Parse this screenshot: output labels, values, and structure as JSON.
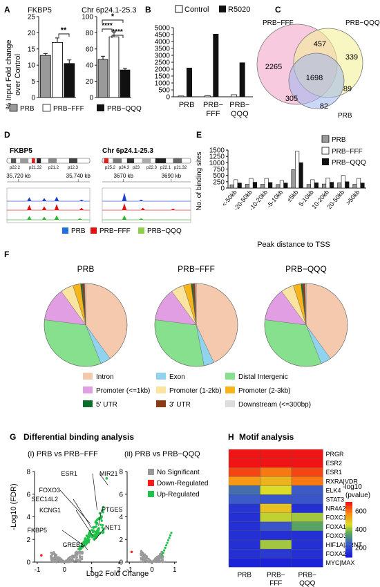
{
  "panels": {
    "A": {
      "label": "A",
      "ylabel_line1": "% Input Fold change",
      "ylabel_line2": "over Control",
      "legend": [
        "PRB",
        "PRB−FFF",
        "PRB−QQQ"
      ],
      "stars": [
        "**",
        "*",
        "****",
        "****"
      ]
    },
    "B": {
      "label": "B",
      "legend": [
        "Control",
        "R5020"
      ]
    },
    "C": {
      "label": "C"
    },
    "D": {
      "label": "D",
      "gene1": "FKBP5",
      "gene2": "Chr 6p24.1-25.3",
      "band_labels_1": [
        "p22.2",
        "p21.32",
        "p21.2",
        "p12.3"
      ],
      "band_labels_2": [
        "p25.2",
        "p24.3",
        "p23",
        "p22.3",
        "p22.1",
        "p21.32"
      ],
      "coord_labels_1": [
        "35,720 kb",
        "35,740 kb"
      ],
      "coord_labels_2": [
        "3670 kb",
        "3690 kb"
      ],
      "legend": [
        "PRB",
        "PRB−FFF",
        "PRB−QQQ"
      ]
    },
    "E": {
      "label": "E"
    },
    "F": {
      "label": "F",
      "titles": [
        "PRB",
        "PRB−FFF",
        "PRB−QQQ"
      ],
      "legend": [
        "Intron",
        "Exon",
        "Distal Intergenic",
        "Promoter (<=1kb)",
        "Promoter (1-2kb)",
        "Promoter (2-3kb)",
        "5' UTR",
        "3' UTR",
        "Downstream (<=300bp)"
      ],
      "colors": [
        "#f5c9ae",
        "#8fd3ef",
        "#86e08e",
        "#e29ee2",
        "#fbe3a0",
        "#f7b41b",
        "#0d6d2c",
        "#8b3c14",
        "#dddddd"
      ]
    },
    "G": {
      "label": "G",
      "title": "Differential binding analysis",
      "sub1": "(i) PRB vs PRB−FFF",
      "sub2": "(ii) PRB vs PRB−QQQ",
      "ylabel": "-Log10 (FDR)",
      "xlabel": "Log2 Fold Change",
      "genes": [
        "ESR1",
        "MIR21",
        "FOXO3",
        "SEC14L2",
        "KCNG1",
        "PTGES",
        "NET1",
        "FKBP5",
        "GREB1"
      ],
      "legend": [
        "No Significant",
        "Down-Regulated",
        "Up-Regulated"
      ],
      "legend_colors": [
        "#999999",
        "#ff1a1a",
        "#1fc24a"
      ],
      "yticks": [
        "0",
        "2",
        "4",
        "6",
        "8"
      ],
      "xticks1": [
        "-1",
        "0",
        "1",
        "2"
      ],
      "xticks2": [
        "-1",
        "0",
        "1"
      ]
    },
    "H": {
      "label": "H",
      "title": "Motif analysis",
      "rows": [
        "PRGR",
        "ESR2",
        "ESR1",
        "RXRA|VDR",
        "ELK4",
        "STAT3",
        "NR4A2",
        "FOXC1",
        "FOXA1",
        "FOXO3",
        "HIF1A|ARNT",
        "FOXA2",
        "MYC|MAX"
      ],
      "cols": [
        "PRB",
        "PRB−FFF",
        "PRB−QQQ"
      ],
      "colorbar_title_1": "-log10",
      "colorbar_title_2": "(pvalue)",
      "colorbar_ticks": [
        "600",
        "400",
        "200"
      ]
    }
  },
  "chart_data": [
    {
      "id": "A-FKBP5",
      "type": "bar",
      "title": "FKBP5",
      "categories": [
        "PRB",
        "PRB−FFF",
        "PRB−QQQ"
      ],
      "values": [
        13,
        17,
        10.5
      ],
      "errors": [
        0.6,
        1.4,
        1.1
      ],
      "ylim": [
        0,
        25
      ],
      "yticks": [
        "0",
        "5",
        "10",
        "15",
        "20",
        "25"
      ]
    },
    {
      "id": "A-Chr6",
      "type": "bar",
      "title": "Chr 6p24.1-25.3",
      "categories": [
        "PRB",
        "PRB−FFF",
        "PRB−QQQ"
      ],
      "values": [
        47,
        75,
        34
      ],
      "errors": [
        4,
        6,
        2
      ],
      "ylim": [
        0,
        100
      ],
      "yticks": [
        "0",
        "20",
        "40",
        "60",
        "80",
        "100"
      ]
    },
    {
      "id": "B",
      "type": "bar",
      "categories": [
        "PRB",
        "PRB−FFF",
        "PRB−QQQ"
      ],
      "series": [
        {
          "name": "Control",
          "values": [
            60,
            80,
            150
          ]
        },
        {
          "name": "R5020",
          "values": [
            2100,
            4550,
            2480
          ]
        }
      ],
      "ylim": [
        0,
        5000
      ],
      "yticks": [
        "0",
        "500",
        "1000",
        "1500",
        "2000",
        "2500",
        "3000",
        "3500",
        "4000",
        "4500",
        "5000"
      ]
    },
    {
      "id": "C",
      "type": "venn",
      "sets": [
        "PRB−FFF",
        "PRB−QQQ",
        "PRB"
      ],
      "regions": {
        "FFF_only": 2265,
        "QQQ_only": 339,
        "PRB_only": 82,
        "FFF_QQQ": 457,
        "FFF_PRB": 305,
        "QQQ_PRB": 89,
        "all": 1698
      }
    },
    {
      "id": "E",
      "type": "bar",
      "categories": [
        "<-50kb",
        "-20-50kb",
        "-10-20kb",
        "-5-10kb",
        "±5kb",
        "5-10kb",
        "10-20kb",
        "20-50kb",
        ">50kb"
      ],
      "series": [
        {
          "name": "PRB",
          "values": [
            130,
            150,
            150,
            140,
            730,
            145,
            160,
            210,
            150
          ]
        },
        {
          "name": "PRB−FFF",
          "values": [
            330,
            380,
            380,
            300,
            1450,
            330,
            400,
            500,
            380
          ]
        },
        {
          "name": "PRB−QQQ",
          "values": [
            200,
            230,
            220,
            200,
            1000,
            210,
            230,
            250,
            200
          ]
        }
      ],
      "ylabel": "No. of binding sites",
      "xlabel": "Peak distance to TSS",
      "ylim": [
        0,
        1500
      ],
      "yticks": [
        "0",
        "250",
        "500",
        "750",
        "1000",
        "1250",
        "1500"
      ]
    },
    {
      "id": "F",
      "type": "pie",
      "series": [
        {
          "name": "PRB",
          "values": [
            40,
            4,
            33,
            13,
            5,
            3,
            0.6,
            1,
            0.4
          ]
        },
        {
          "name": "PRB−FFF",
          "values": [
            43,
            4,
            30,
            13,
            5,
            3,
            0.6,
            1,
            0.4
          ]
        },
        {
          "name": "PRB−QQQ",
          "values": [
            40,
            4,
            33,
            13,
            5,
            3,
            0.6,
            1,
            0.4
          ]
        }
      ]
    },
    {
      "id": "H",
      "type": "heatmap",
      "values": [
        [
          700,
          700,
          700
        ],
        [
          700,
          700,
          700
        ],
        [
          650,
          600,
          650
        ],
        [
          560,
          520,
          600
        ],
        [
          280,
          460,
          250
        ],
        [
          250,
          240,
          240
        ],
        [
          170,
          500,
          160
        ],
        [
          160,
          440,
          420
        ],
        [
          160,
          240,
          360
        ],
        [
          160,
          160,
          160
        ],
        [
          160,
          420,
          160
        ],
        [
          160,
          180,
          160
        ],
        [
          130,
          130,
          130
        ]
      ],
      "vrange": [
        100,
        700
      ]
    }
  ]
}
